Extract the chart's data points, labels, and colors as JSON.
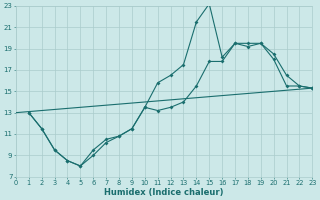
{
  "xlabel": "Humidex (Indice chaleur)",
  "xlim": [
    0,
    23
  ],
  "ylim": [
    7,
    23
  ],
  "xticks": [
    0,
    1,
    2,
    3,
    4,
    5,
    6,
    7,
    8,
    9,
    10,
    11,
    12,
    13,
    14,
    15,
    16,
    17,
    18,
    19,
    20,
    21,
    22,
    23
  ],
  "yticks": [
    7,
    9,
    11,
    13,
    15,
    17,
    19,
    21,
    23
  ],
  "bg_color": "#cce8e8",
  "grid_color": "#aacccc",
  "line_color": "#1a6e6e",
  "line1_x": [
    1,
    2,
    3,
    4,
    5,
    6,
    7,
    8,
    9,
    10,
    11,
    12,
    13,
    14,
    15,
    16,
    17,
    18,
    19,
    20,
    21,
    22,
    23
  ],
  "line1_y": [
    13.0,
    11.5,
    9.5,
    8.5,
    8.0,
    9.0,
    10.2,
    10.8,
    11.5,
    13.5,
    15.8,
    16.5,
    17.5,
    21.5,
    23.2,
    18.2,
    19.5,
    19.2,
    19.5,
    18.5,
    16.5,
    15.5,
    15.3
  ],
  "line2_x": [
    1,
    2,
    3,
    4,
    5,
    6,
    7,
    8,
    9,
    10,
    11,
    12,
    13,
    14,
    15,
    16,
    17,
    18,
    19,
    20,
    21,
    22,
    23
  ],
  "line2_y": [
    13.0,
    11.5,
    9.5,
    8.5,
    8.0,
    9.5,
    10.5,
    10.8,
    11.5,
    13.5,
    13.2,
    13.5,
    14.0,
    15.5,
    17.8,
    17.8,
    19.5,
    19.5,
    19.5,
    18.0,
    15.5,
    15.5,
    15.3
  ],
  "line3_x": [
    0,
    23
  ],
  "line3_y": [
    13.0,
    15.3
  ],
  "figsize": [
    3.2,
    2.0
  ],
  "dpi": 100
}
